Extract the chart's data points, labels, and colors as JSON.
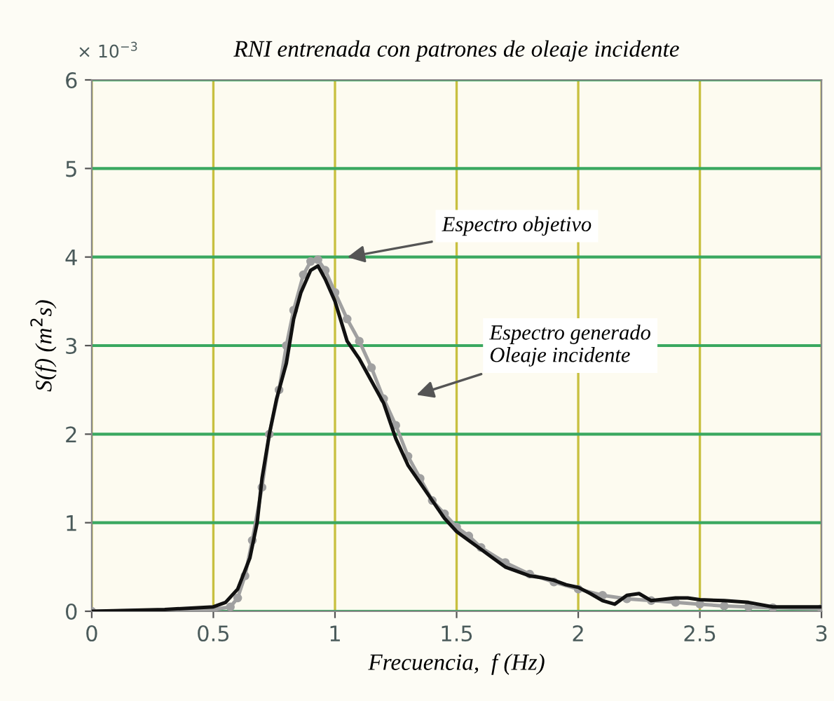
{
  "chart_data": {
    "type": "line",
    "title": "RNI entrenada con patrones de oleaje incidente",
    "xlabel": "Frecuencia,  f (Hz)",
    "ylabel": "S(f) (m$^{2}$s)",
    "xlim": [
      0,
      3
    ],
    "ylim": [
      0,
      6
    ],
    "xticks": [
      0,
      0.5,
      1,
      1.5,
      2,
      2.5,
      3
    ],
    "yticks": [
      0,
      1,
      2,
      3,
      4,
      5,
      6
    ],
    "grid": true,
    "legend": false,
    "annotations": [
      "× 10$^{−3}$",
      "Espectro objetivo",
      "Espectro generado\nOleaje incidente"
    ],
    "series": [
      {
        "color": "#a0a0a0",
        "marker": "circle",
        "x": [
          0,
          0.5,
          0.57,
          0.6,
          0.63,
          0.66,
          0.7,
          0.73,
          0.77,
          0.8,
          0.83,
          0.87,
          0.9,
          0.93,
          0.96,
          1.0,
          1.05,
          1.1,
          1.15,
          1.2,
          1.25,
          1.3,
          1.35,
          1.4,
          1.45,
          1.5,
          1.55,
          1.6,
          1.7,
          1.8,
          1.9,
          2.0,
          2.1,
          2.2,
          2.3,
          2.4,
          2.5,
          2.6,
          2.7,
          2.8,
          3.0
        ],
        "values": [
          0,
          0.02,
          0.05,
          0.15,
          0.4,
          0.8,
          1.4,
          2.0,
          2.5,
          3.0,
          3.4,
          3.8,
          3.95,
          3.97,
          3.85,
          3.6,
          3.3,
          3.05,
          2.75,
          2.4,
          2.1,
          1.75,
          1.5,
          1.25,
          1.1,
          0.95,
          0.85,
          0.72,
          0.55,
          0.42,
          0.33,
          0.25,
          0.18,
          0.14,
          0.12,
          0.1,
          0.08,
          0.06,
          0.05,
          0.04,
          0.03
        ]
      },
      {
        "color": "#111111",
        "marker": "none",
        "x": [
          0,
          0.3,
          0.5,
          0.55,
          0.6,
          0.65,
          0.68,
          0.7,
          0.73,
          0.76,
          0.8,
          0.83,
          0.86,
          0.9,
          0.93,
          0.96,
          1.0,
          1.05,
          1.1,
          1.15,
          1.2,
          1.25,
          1.3,
          1.35,
          1.4,
          1.45,
          1.5,
          1.55,
          1.6,
          1.65,
          1.7,
          1.75,
          1.8,
          1.85,
          1.9,
          1.95,
          2.0,
          2.05,
          2.1,
          2.15,
          2.2,
          2.25,
          2.3,
          2.4,
          2.45,
          2.5,
          2.6,
          2.7,
          2.8,
          3.0
        ],
        "values": [
          0,
          0.02,
          0.05,
          0.1,
          0.25,
          0.6,
          1.0,
          1.5,
          2.0,
          2.4,
          2.8,
          3.3,
          3.6,
          3.85,
          3.9,
          3.75,
          3.5,
          3.05,
          2.85,
          2.6,
          2.35,
          1.95,
          1.65,
          1.45,
          1.25,
          1.05,
          0.9,
          0.8,
          0.7,
          0.6,
          0.5,
          0.45,
          0.4,
          0.38,
          0.35,
          0.3,
          0.27,
          0.2,
          0.12,
          0.08,
          0.18,
          0.2,
          0.12,
          0.15,
          0.15,
          0.13,
          0.12,
          0.1,
          0.05,
          0.05
        ]
      }
    ]
  }
}
